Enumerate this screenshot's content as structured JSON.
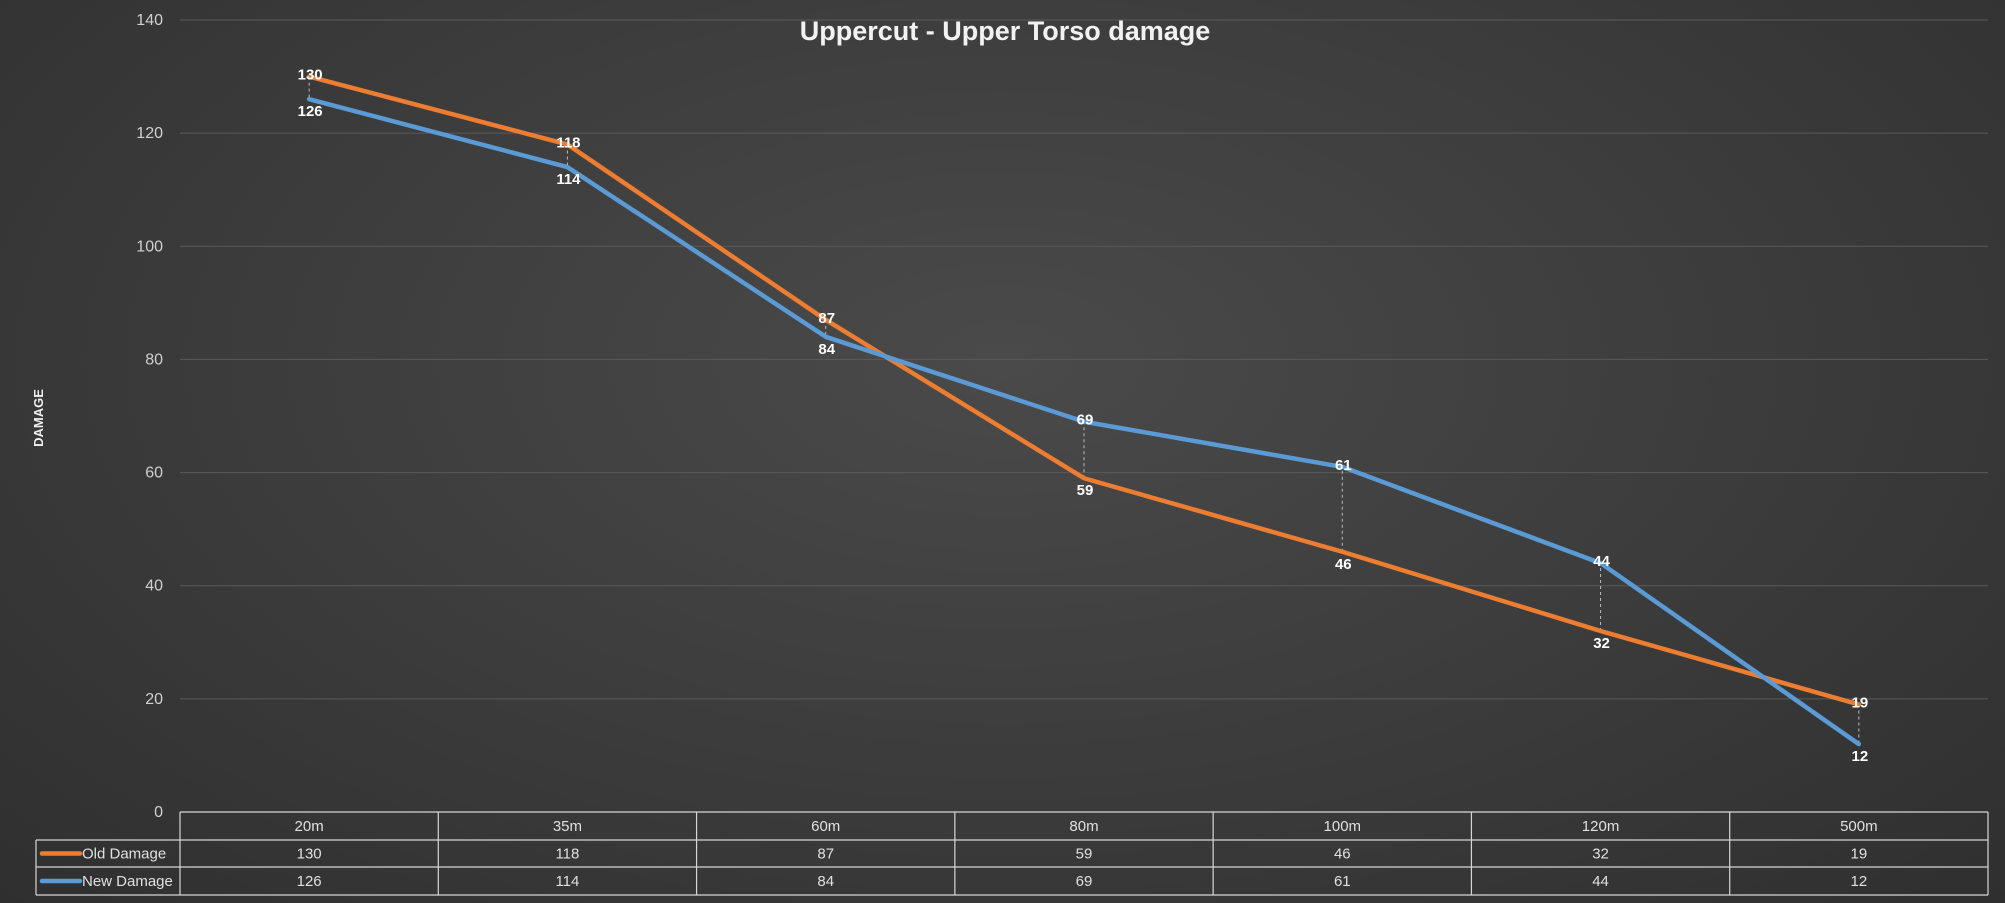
{
  "chart_data": {
    "type": "line",
    "title": "Uppercut - Upper Torso damage",
    "ylabel": "DAMAGE",
    "xlabel": "",
    "categories": [
      "20m",
      "35m",
      "60m",
      "80m",
      "100m",
      "120m",
      "500m"
    ],
    "ylim": [
      0,
      140
    ],
    "yticks": [
      0,
      20,
      40,
      60,
      80,
      100,
      120,
      140
    ],
    "grid": true,
    "legend": "data-table-bottom",
    "series": [
      {
        "name": "Old Damage",
        "color": "#ed7d31",
        "values": [
          130,
          118,
          87,
          59,
          46,
          32,
          19
        ]
      },
      {
        "name": "New Damage",
        "color": "#5b9bd5",
        "values": [
          126,
          114,
          84,
          69,
          61,
          44,
          12
        ]
      }
    ]
  }
}
